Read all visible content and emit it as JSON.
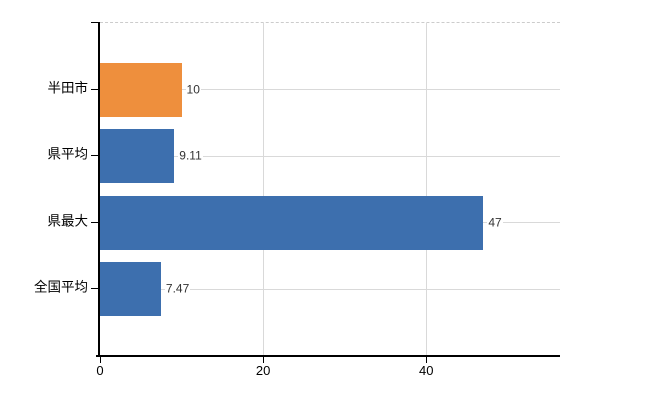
{
  "chart_data": {
    "type": "bar",
    "orientation": "horizontal",
    "title": "",
    "xlabel": "",
    "ylabel": "",
    "categories": [
      "半田市",
      "県平均",
      "県最大",
      "全国平均"
    ],
    "values": [
      10,
      9.11,
      47,
      7.47
    ],
    "value_labels": [
      "10",
      "9.11",
      "47",
      "7.47"
    ],
    "bar_colors": [
      "#EE8F3D",
      "#3D6FAE",
      "#3D6FAE",
      "#3D6FAE"
    ],
    "x_ticks": [
      0,
      20,
      40
    ],
    "x_tick_labels": [
      "0",
      "20",
      "40"
    ],
    "xlim": [
      0,
      56.4
    ],
    "grid": true,
    "legend": false,
    "background": "#FFFFFF",
    "colors": {
      "axis": "#000000",
      "gridline": "#D9D9D9",
      "plot_top_border": "#CCCCCC",
      "value_label_text": "#333333",
      "category_label_text": "#000000",
      "tick_label_text": "#000000"
    }
  }
}
